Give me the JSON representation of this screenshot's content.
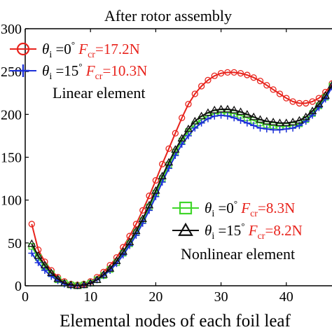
{
  "chart_data": {
    "type": "line",
    "title": "After rotor assembly",
    "xlabel": "Elemental nodes of each foil leaf",
    "ylabel": "",
    "xlim": [
      0,
      47
    ],
    "ylim": [
      0,
      300
    ],
    "x_ticks": [
      "0",
      "10",
      "20",
      "30",
      "40"
    ],
    "y_ticks": [
      "0",
      "50",
      "100",
      "150",
      "200",
      "250",
      "300"
    ],
    "grid": false,
    "legend_groups": [
      {
        "title": "Linear element",
        "placement": "top-left"
      },
      {
        "title": "Nonlinear element",
        "placement": "bottom-right"
      }
    ],
    "series": [
      {
        "legend": {
          "theta_sym": "θ",
          "theta_sub": "i",
          "angle": " =0",
          "deg": "°",
          "f_sym": "F",
          "f_sub": "cr",
          "f_value": "=17.2N"
        },
        "marker": "circle",
        "color": "#e8231c",
        "group": 0,
        "x": [
          1,
          2,
          3,
          4,
          5,
          6,
          7,
          8,
          9,
          10,
          11,
          12,
          13,
          14,
          15,
          16,
          17,
          18,
          19,
          20,
          21,
          22,
          23,
          24,
          25,
          26,
          27,
          28,
          29,
          30,
          31,
          32,
          33,
          34,
          35,
          36,
          37,
          38,
          39,
          40,
          41,
          42,
          43,
          44,
          45,
          46,
          47
        ],
        "y": [
          72,
          42,
          28,
          18,
          10,
          5,
          2,
          1,
          2,
          5,
          10,
          16,
          24,
          33,
          45,
          58,
          72,
          88,
          105,
          123,
          142,
          160,
          178,
          196,
          212,
          224,
          233,
          240,
          245,
          248,
          249,
          249,
          248,
          246,
          243,
          239,
          234,
          229,
          224,
          219,
          215,
          213,
          213,
          215,
          219,
          226,
          236
        ]
      },
      {
        "legend": {
          "theta_sym": "θ",
          "theta_sub": "i",
          "angle": " =15",
          "deg": "°",
          "f_sym": "F",
          "f_sub": "cr",
          "f_value": "=10.3N"
        },
        "marker": "plus",
        "color": "#1d31d8",
        "group": 0,
        "x": [
          1,
          2,
          3,
          4,
          5,
          6,
          7,
          8,
          9,
          10,
          11,
          12,
          13,
          14,
          15,
          16,
          17,
          18,
          19,
          20,
          21,
          22,
          23,
          24,
          25,
          26,
          27,
          28,
          29,
          30,
          31,
          32,
          33,
          34,
          35,
          36,
          37,
          38,
          39,
          40,
          41,
          42,
          43,
          44,
          45,
          46,
          47
        ],
        "y": [
          38,
          27,
          18,
          11,
          6,
          2,
          0,
          0,
          1,
          3,
          7,
          12,
          18,
          26,
          36,
          47,
          59,
          73,
          88,
          104,
          121,
          137,
          152,
          165,
          175,
          184,
          190,
          195,
          198,
          199,
          198,
          196,
          193,
          190,
          187,
          184,
          183,
          182,
          182,
          183,
          184,
          187,
          192,
          199,
          208,
          218,
          232
        ]
      },
      {
        "legend": {
          "theta_sym": "θ",
          "theta_sub": "i",
          "angle": " =0",
          "deg": "°",
          "f_sym": "F",
          "f_sub": "cr",
          "f_value": "=8.3N"
        },
        "marker": "square",
        "color": "#3fd62a",
        "group": 1,
        "x": [
          1,
          2,
          3,
          4,
          5,
          6,
          7,
          8,
          9,
          10,
          11,
          12,
          13,
          14,
          15,
          16,
          17,
          18,
          19,
          20,
          21,
          22,
          23,
          24,
          25,
          26,
          27,
          28,
          29,
          30,
          31,
          32,
          33,
          34,
          35,
          36,
          37,
          38,
          39,
          40,
          41,
          42,
          43,
          44,
          45,
          46,
          47
        ],
        "y": [
          46,
          33,
          22,
          14,
          7,
          3,
          1,
          0,
          1,
          3,
          7,
          12,
          19,
          27,
          38,
          49,
          62,
          76,
          92,
          108,
          125,
          141,
          156,
          169,
          180,
          188,
          194,
          198,
          201,
          202,
          202,
          201,
          199,
          196,
          193,
          190,
          188,
          187,
          186,
          186,
          187,
          189,
          194,
          201,
          210,
          220,
          233
        ]
      },
      {
        "legend": {
          "theta_sym": "θ",
          "theta_sub": "i",
          "angle": " =15",
          "deg": "°",
          "f_sym": "F",
          "f_sub": "cr",
          "f_value": "=8.2N"
        },
        "marker": "triangle",
        "color": "#111111",
        "group": 1,
        "x": [
          1,
          2,
          3,
          4,
          5,
          6,
          7,
          8,
          9,
          10,
          11,
          12,
          13,
          14,
          15,
          16,
          17,
          18,
          19,
          20,
          21,
          22,
          23,
          24,
          25,
          26,
          27,
          28,
          29,
          30,
          31,
          32,
          33,
          34,
          35,
          36,
          37,
          38,
          39,
          40,
          41,
          42,
          43,
          44,
          45,
          46,
          47
        ],
        "y": [
          49,
          35,
          24,
          15,
          8,
          3,
          1,
          0,
          1,
          3,
          7,
          13,
          20,
          29,
          40,
          51,
          64,
          78,
          94,
          111,
          128,
          144,
          159,
          172,
          183,
          192,
          198,
          202,
          205,
          206,
          206,
          205,
          203,
          200,
          197,
          194,
          192,
          191,
          190,
          190,
          191,
          193,
          197,
          204,
          212,
          222,
          234
        ]
      }
    ]
  }
}
